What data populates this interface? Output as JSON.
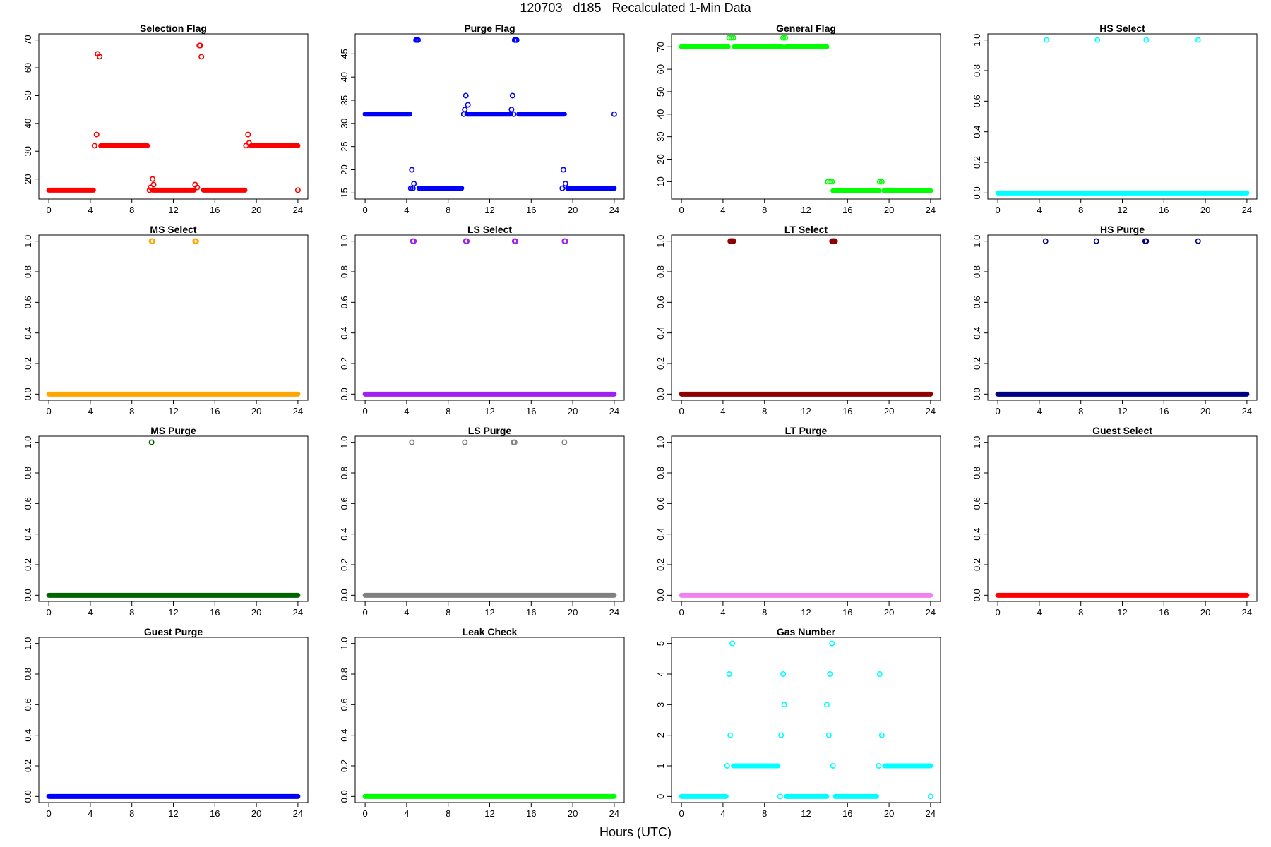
{
  "title": "120703   d185   Recalculated 1-Min Data",
  "xlabel": "Hours (UTC)",
  "chart_data": [
    {
      "type": "scatter",
      "title": "Selection Flag",
      "color": "#ff0000",
      "xlim": [
        0,
        24
      ],
      "ylim": [
        15,
        70
      ],
      "xticks": [
        0,
        4,
        8,
        12,
        16,
        20,
        24
      ],
      "yticks": [
        20,
        30,
        40,
        50,
        60,
        70
      ],
      "segments": [
        [
          0,
          4.3,
          16
        ],
        [
          5,
          9.5,
          32
        ],
        [
          10,
          14,
          16
        ],
        [
          14.9,
          18.9,
          16
        ],
        [
          19.5,
          24,
          32
        ]
      ],
      "points": [
        [
          4.4,
          32
        ],
        [
          4.6,
          36
        ],
        [
          4.7,
          65
        ],
        [
          4.9,
          64
        ],
        [
          9.7,
          16
        ],
        [
          9.8,
          17
        ],
        [
          10,
          20
        ],
        [
          10.1,
          18
        ],
        [
          14.1,
          18
        ],
        [
          14.3,
          17
        ],
        [
          14.5,
          68
        ],
        [
          14.6,
          68
        ],
        [
          14.7,
          64
        ],
        [
          19,
          32
        ],
        [
          19.2,
          36
        ],
        [
          19.3,
          33
        ],
        [
          24,
          16
        ]
      ]
    },
    {
      "type": "scatter",
      "title": "Purge Flag",
      "color": "#0000ff",
      "xlim": [
        0,
        24
      ],
      "ylim": [
        15,
        48
      ],
      "xticks": [
        0,
        4,
        8,
        12,
        16,
        20,
        24
      ],
      "yticks": [
        15,
        20,
        25,
        30,
        35,
        40,
        45
      ],
      "segments": [
        [
          0,
          4.3,
          32
        ],
        [
          5.2,
          9.3,
          16
        ],
        [
          9.8,
          14,
          32
        ],
        [
          14.8,
          19.2,
          32
        ],
        [
          19.5,
          24,
          16
        ]
      ],
      "points": [
        [
          4.4,
          16
        ],
        [
          4.5,
          20
        ],
        [
          4.6,
          16
        ],
        [
          4.7,
          17
        ],
        [
          4.9,
          48
        ],
        [
          5.0,
          48
        ],
        [
          5.1,
          48
        ],
        [
          9.5,
          32
        ],
        [
          9.6,
          33
        ],
        [
          9.7,
          36
        ],
        [
          9.9,
          34
        ],
        [
          14.1,
          33
        ],
        [
          14.2,
          36
        ],
        [
          14.3,
          32
        ],
        [
          14.4,
          48
        ],
        [
          14.5,
          48
        ],
        [
          14.6,
          48
        ],
        [
          19.0,
          16
        ],
        [
          19.1,
          20
        ],
        [
          19.3,
          17
        ],
        [
          24,
          32
        ]
      ]
    },
    {
      "type": "scatter",
      "title": "General Flag",
      "color": "#00ff00",
      "xlim": [
        0,
        24
      ],
      "ylim": [
        5,
        73
      ],
      "xticks": [
        0,
        4,
        8,
        12,
        16,
        20,
        24
      ],
      "yticks": [
        10,
        20,
        30,
        40,
        50,
        60,
        70
      ],
      "segments": [
        [
          0,
          4.5,
          70
        ],
        [
          5.1,
          9.7,
          70
        ],
        [
          10.1,
          14,
          70
        ],
        [
          14.6,
          19,
          6
        ],
        [
          19.5,
          24,
          6
        ]
      ],
      "points": [
        [
          4.6,
          74
        ],
        [
          4.8,
          74
        ],
        [
          5.0,
          74
        ],
        [
          9.8,
          74
        ],
        [
          10.0,
          74
        ],
        [
          14.1,
          10
        ],
        [
          14.3,
          10
        ],
        [
          14.5,
          10
        ],
        [
          19.1,
          10
        ],
        [
          19.3,
          10
        ]
      ]
    },
    {
      "type": "scatter",
      "title": "HS Select",
      "color": "#00ffff",
      "xlim": [
        0,
        24
      ],
      "ylim": [
        0,
        1
      ],
      "xticks": [
        0,
        4,
        8,
        12,
        16,
        20,
        24
      ],
      "yticks": [
        0.0,
        0.2,
        0.4,
        0.6,
        0.8,
        1.0
      ],
      "segments": [
        [
          0,
          24,
          0
        ]
      ],
      "points": [
        [
          4.7,
          1
        ],
        [
          9.6,
          1
        ],
        [
          14.3,
          1
        ],
        [
          19.3,
          1
        ]
      ]
    },
    {
      "type": "scatter",
      "title": "MS Select",
      "color": "#ffa500",
      "xlim": [
        0,
        24
      ],
      "ylim": [
        0,
        1
      ],
      "xticks": [
        0,
        4,
        8,
        12,
        16,
        20,
        24
      ],
      "yticks": [
        0.0,
        0.2,
        0.4,
        0.6,
        0.8,
        1.0
      ],
      "segments": [
        [
          0,
          24,
          0
        ]
      ],
      "points": [
        [
          9.9,
          1
        ],
        [
          10.0,
          1
        ],
        [
          14.1,
          1
        ],
        [
          14.2,
          1
        ]
      ]
    },
    {
      "type": "scatter",
      "title": "LS Select",
      "color": "#a020f0",
      "xlim": [
        0,
        24
      ],
      "ylim": [
        0,
        1
      ],
      "xticks": [
        0,
        4,
        8,
        12,
        16,
        20,
        24
      ],
      "yticks": [
        0.0,
        0.2,
        0.4,
        0.6,
        0.8,
        1.0
      ],
      "segments": [
        [
          0,
          24,
          0
        ]
      ],
      "points": [
        [
          4.6,
          1
        ],
        [
          4.7,
          1
        ],
        [
          9.7,
          1
        ],
        [
          9.8,
          1
        ],
        [
          14.4,
          1
        ],
        [
          14.5,
          1
        ],
        [
          19.2,
          1
        ],
        [
          19.3,
          1
        ]
      ]
    },
    {
      "type": "scatter",
      "title": "LT Select",
      "color": "#8b0000",
      "xlim": [
        0,
        24
      ],
      "ylim": [
        0,
        1
      ],
      "xticks": [
        0,
        4,
        8,
        12,
        16,
        20,
        24
      ],
      "yticks": [
        0.0,
        0.2,
        0.4,
        0.6,
        0.8,
        1.0
      ],
      "segments": [
        [
          0,
          24,
          0
        ]
      ],
      "points": [
        [
          4.7,
          1
        ],
        [
          4.8,
          1
        ],
        [
          4.9,
          1
        ],
        [
          5.0,
          1
        ],
        [
          14.5,
          1
        ],
        [
          14.6,
          1
        ],
        [
          14.7,
          1
        ],
        [
          14.8,
          1
        ]
      ]
    },
    {
      "type": "scatter",
      "title": "HS Purge",
      "color": "#000080",
      "xlim": [
        0,
        24
      ],
      "ylim": [
        0,
        1
      ],
      "xticks": [
        0,
        4,
        8,
        12,
        16,
        20,
        24
      ],
      "yticks": [
        0.0,
        0.2,
        0.4,
        0.6,
        0.8,
        1.0
      ],
      "segments": [
        [
          0,
          24,
          0
        ]
      ],
      "points": [
        [
          4.6,
          1
        ],
        [
          9.5,
          1
        ],
        [
          14.2,
          1
        ],
        [
          14.3,
          1
        ],
        [
          19.3,
          1
        ]
      ]
    },
    {
      "type": "scatter",
      "title": "MS Purge",
      "color": "#006400",
      "xlim": [
        0,
        24
      ],
      "ylim": [
        0,
        1
      ],
      "xticks": [
        0,
        4,
        8,
        12,
        16,
        20,
        24
      ],
      "yticks": [
        0.0,
        0.2,
        0.4,
        0.6,
        0.8,
        1.0
      ],
      "segments": [
        [
          0,
          24,
          0
        ]
      ],
      "points": [
        [
          9.9,
          1
        ]
      ]
    },
    {
      "type": "scatter",
      "title": "LS Purge",
      "color": "#808080",
      "xlim": [
        0,
        24
      ],
      "ylim": [
        0,
        1
      ],
      "xticks": [
        0,
        4,
        8,
        12,
        16,
        20,
        24
      ],
      "yticks": [
        0.0,
        0.2,
        0.4,
        0.6,
        0.8,
        1.0
      ],
      "segments": [
        [
          0,
          24,
          0
        ]
      ],
      "points": [
        [
          4.5,
          1
        ],
        [
          9.6,
          1
        ],
        [
          14.3,
          1
        ],
        [
          14.4,
          1
        ],
        [
          19.2,
          1
        ]
      ]
    },
    {
      "type": "scatter",
      "title": "LT Purge",
      "color": "#ee82ee",
      "xlim": [
        0,
        24
      ],
      "ylim": [
        0,
        1
      ],
      "xticks": [
        0,
        4,
        8,
        12,
        16,
        20,
        24
      ],
      "yticks": [
        0.0,
        0.2,
        0.4,
        0.6,
        0.8,
        1.0
      ],
      "segments": [
        [
          0,
          24,
          0
        ]
      ],
      "points": []
    },
    {
      "type": "scatter",
      "title": "Guest Select",
      "color": "#ff0000",
      "xlim": [
        0,
        24
      ],
      "ylim": [
        0,
        1
      ],
      "xticks": [
        0,
        4,
        8,
        12,
        16,
        20,
        24
      ],
      "yticks": [
        0.0,
        0.2,
        0.4,
        0.6,
        0.8,
        1.0
      ],
      "segments": [
        [
          0,
          24,
          0
        ]
      ],
      "points": []
    },
    {
      "type": "scatter",
      "title": "Guest Purge",
      "color": "#0000ff",
      "xlim": [
        0,
        24
      ],
      "ylim": [
        0,
        1
      ],
      "xticks": [
        0,
        4,
        8,
        12,
        16,
        20,
        24
      ],
      "yticks": [
        0.0,
        0.2,
        0.4,
        0.6,
        0.8,
        1.0
      ],
      "segments": [
        [
          0,
          24,
          0
        ]
      ],
      "points": []
    },
    {
      "type": "scatter",
      "title": "Leak Check",
      "color": "#00ff00",
      "xlim": [
        0,
        24
      ],
      "ylim": [
        0,
        1
      ],
      "xticks": [
        0,
        4,
        8,
        12,
        16,
        20,
        24
      ],
      "yticks": [
        0.0,
        0.2,
        0.4,
        0.6,
        0.8,
        1.0
      ],
      "segments": [
        [
          0,
          24,
          0
        ]
      ],
      "points": []
    },
    {
      "type": "scatter",
      "title": "Gas Number",
      "color": "#00ffff",
      "xlim": [
        0,
        24
      ],
      "ylim": [
        0,
        5
      ],
      "xticks": [
        0,
        4,
        8,
        12,
        16,
        20,
        24
      ],
      "yticks": [
        0,
        1,
        2,
        3,
        4,
        5
      ],
      "segments": [
        [
          0,
          4.3,
          0
        ],
        [
          5.0,
          9.3,
          1
        ],
        [
          10.1,
          14.0,
          0
        ],
        [
          14.8,
          18.8,
          0
        ],
        [
          19.6,
          24,
          1
        ]
      ],
      "points": [
        [
          4.4,
          1
        ],
        [
          4.6,
          4
        ],
        [
          4.7,
          2
        ],
        [
          4.9,
          5
        ],
        [
          9.5,
          0
        ],
        [
          9.6,
          2
        ],
        [
          9.8,
          4
        ],
        [
          9.9,
          3
        ],
        [
          14.0,
          3
        ],
        [
          14.2,
          2
        ],
        [
          14.3,
          4
        ],
        [
          14.5,
          5
        ],
        [
          14.6,
          1
        ],
        [
          19.0,
          1
        ],
        [
          19.1,
          4
        ],
        [
          19.3,
          2
        ],
        [
          24,
          0
        ]
      ]
    }
  ]
}
